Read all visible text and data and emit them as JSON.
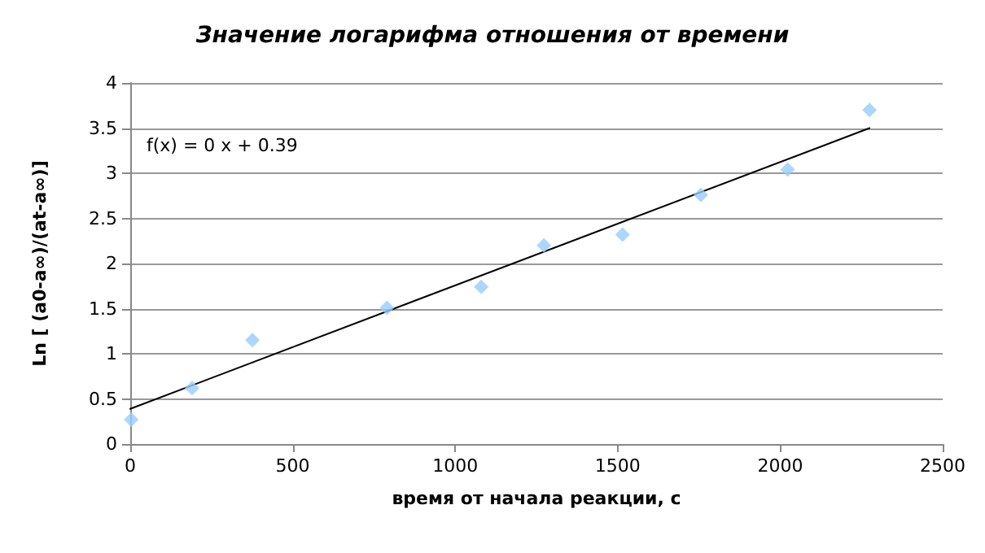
{
  "chart_data": {
    "type": "scatter",
    "title": "Значение логарифма отношения от времени",
    "xlabel": "время от начала реакции, с",
    "ylabel": "Ln [ (a0-a∞)/(at-a∞)]",
    "series": [
      {
        "color": "#99ccff",
        "x": [
          3,
          190,
          376,
          790,
          1080,
          1273,
          1515,
          1756,
          2023,
          2275
        ],
        "values": [
          0.27,
          0.62,
          1.15,
          1.51,
          1.74,
          2.2,
          2.32,
          2.76,
          3.04,
          3.7
        ]
      },
      {
        "type": "line",
        "color": "#000000",
        "x": [
          0,
          2275
        ],
        "values": [
          0.39,
          3.5
        ],
        "marker": "none"
      }
    ],
    "annotations": [
      "f(x) = 0 x + 0.39"
    ],
    "xlim": [
      0,
      2500
    ],
    "xticks": [
      0,
      500,
      1000,
      1500,
      2000,
      2500
    ],
    "ylim": [
      0,
      4
    ],
    "yticks": [
      0,
      0.5,
      1,
      1.5,
      2,
      2.5,
      3,
      3.5,
      4
    ],
    "grid": "y",
    "marker": "diamond"
  }
}
